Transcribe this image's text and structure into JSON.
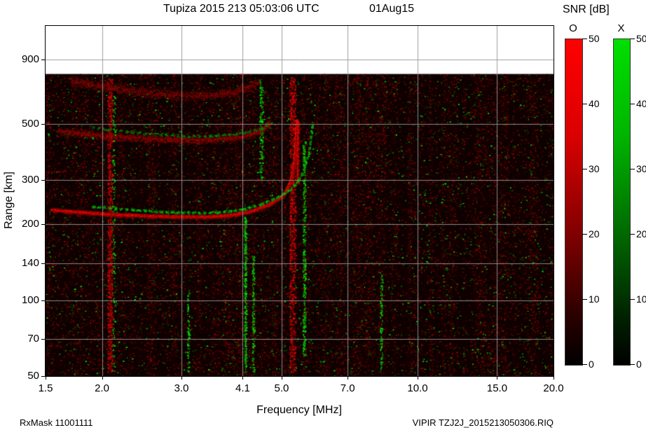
{
  "header": {
    "title": "Tupiza 2015 213 05:03:06 UTC",
    "date": "01Aug15"
  },
  "footer": {
    "left": "RxMask 11001111",
    "right": "VIPIR  TZJ2J_2015213050306.RIQ"
  },
  "colorbar": {
    "title": "SNR [dB]",
    "min": 0,
    "max": 50,
    "ticks": [
      50,
      40,
      30,
      20,
      10,
      0
    ],
    "bars": [
      {
        "label": "O",
        "color": "#ff0000"
      },
      {
        "label": "X",
        "color": "#00dd00"
      }
    ]
  },
  "chart_data": {
    "type": "heatmap",
    "title": "Tupiza 2015 213 05:03:06 UTC 01Aug15",
    "xlabel": "Frequency [MHz]",
    "ylabel": "Range [km]",
    "x_scale": "log",
    "y_scale": "log",
    "xlim": [
      1.5,
      20.0
    ],
    "ylim": [
      50,
      1224
    ],
    "data_top_km": 790,
    "x_tick_values": [
      1.5,
      2.0,
      3.0,
      4.1,
      5.0,
      7.0,
      10.0,
      15.0,
      20.0
    ],
    "x_tick_labels": [
      "1.5",
      "2.0",
      "3.0",
      "4.1",
      "5.0",
      "7.0",
      "10.0",
      "15.0",
      "20.0"
    ],
    "y_tick_values": [
      900,
      500,
      300,
      200,
      140,
      100,
      70,
      50
    ],
    "y_tick_labels": [
      "900",
      "500",
      "300",
      "200",
      "140",
      "100",
      "70",
      "50"
    ],
    "grid": true,
    "snr_range_db": [
      0,
      50
    ],
    "noise": {
      "seed": 1337,
      "red_count": 55000,
      "green_count": 3000
    },
    "traces": [
      {
        "name": "O-mode 1-hop",
        "color": "red",
        "core_width": 4,
        "spread": 4,
        "intensity": 1.0,
        "density": 4,
        "dashed": false,
        "points": [
          [
            1.55,
            228
          ],
          [
            1.8,
            223
          ],
          [
            2.2,
            218
          ],
          [
            2.8,
            215
          ],
          [
            3.4,
            214
          ],
          [
            3.9,
            218
          ],
          [
            4.3,
            226
          ],
          [
            4.7,
            240
          ],
          [
            5.0,
            258
          ],
          [
            5.15,
            276
          ],
          [
            5.25,
            300
          ],
          [
            5.32,
            335
          ],
          [
            5.36,
            385
          ],
          [
            5.39,
            450
          ],
          [
            5.41,
            515
          ]
        ]
      },
      {
        "name": "O-mode cusp line",
        "color": "red",
        "core_width": 2,
        "spread": 1.5,
        "intensity": 1.0,
        "density": 2,
        "dashed": false,
        "points": [
          [
            5.42,
            290
          ],
          [
            5.43,
            515
          ]
        ]
      },
      {
        "name": "X-mode 1-hop",
        "color": "green",
        "core_width": 0,
        "spread": 2.5,
        "intensity": 0.95,
        "density": 3,
        "dashed": true,
        "points": [
          [
            1.9,
            235
          ],
          [
            2.4,
            228
          ],
          [
            3.0,
            223
          ],
          [
            3.6,
            223
          ],
          [
            4.1,
            230
          ],
          [
            4.5,
            241
          ],
          [
            4.9,
            257
          ],
          [
            5.2,
            274
          ],
          [
            5.45,
            300
          ],
          [
            5.6,
            332
          ],
          [
            5.72,
            380
          ],
          [
            5.8,
            440
          ],
          [
            5.84,
            500
          ]
        ]
      },
      {
        "name": "O-mode 2-hop",
        "color": "red",
        "core_width": 0,
        "spread": 7,
        "intensity": 0.6,
        "density": 4,
        "dashed": false,
        "points": [
          [
            1.6,
            470
          ],
          [
            2.0,
            450
          ],
          [
            2.5,
            438
          ],
          [
            3.0,
            433
          ],
          [
            3.5,
            434
          ],
          [
            4.0,
            444
          ],
          [
            4.3,
            458
          ],
          [
            4.55,
            480
          ],
          [
            4.7,
            505
          ]
        ]
      },
      {
        "name": "X-mode 2-hop",
        "color": "green",
        "core_width": 0,
        "spread": 3,
        "intensity": 0.5,
        "density": 2,
        "dashed": true,
        "points": [
          [
            1.9,
            485
          ],
          [
            2.4,
            462
          ],
          [
            3.0,
            450
          ],
          [
            3.6,
            450
          ],
          [
            4.1,
            462
          ],
          [
            4.5,
            480
          ],
          [
            4.75,
            508
          ]
        ]
      },
      {
        "name": "spread echo band",
        "color": "red",
        "core_width": 0,
        "spread": 9,
        "intensity": 0.42,
        "density": 4,
        "dashed": false,
        "points": [
          [
            1.7,
            745
          ],
          [
            2.0,
            705
          ],
          [
            2.4,
            672
          ],
          [
            2.9,
            652
          ],
          [
            3.4,
            652
          ],
          [
            3.9,
            668
          ],
          [
            4.2,
            700
          ],
          [
            4.45,
            740
          ]
        ]
      }
    ],
    "artifact_columns": [
      {
        "f": 2.08,
        "color": "red",
        "km_min": 52,
        "km_max": 760,
        "count": 700,
        "width": 7
      },
      {
        "f": 2.12,
        "color": "green",
        "km_min": 52,
        "km_max": 700,
        "count": 140,
        "width": 4
      },
      {
        "f": 4.15,
        "color": "green",
        "km_min": 52,
        "km_max": 215,
        "count": 320,
        "width": 3
      },
      {
        "f": 4.32,
        "color": "green",
        "km_min": 52,
        "km_max": 150,
        "count": 140,
        "width": 3
      },
      {
        "f": 5.28,
        "color": "red",
        "km_min": 52,
        "km_max": 770,
        "count": 800,
        "width": 9
      },
      {
        "f": 5.6,
        "color": "green",
        "km_min": 60,
        "km_max": 430,
        "count": 320,
        "width": 4
      },
      {
        "f": 8.3,
        "color": "green",
        "km_min": 52,
        "km_max": 130,
        "count": 90,
        "width": 3
      },
      {
        "f": 4.5,
        "color": "green",
        "km_min": 300,
        "km_max": 760,
        "count": 150,
        "width": 5
      },
      {
        "f": 3.1,
        "color": "green",
        "km_min": 52,
        "km_max": 110,
        "count": 80,
        "width": 3
      }
    ]
  }
}
